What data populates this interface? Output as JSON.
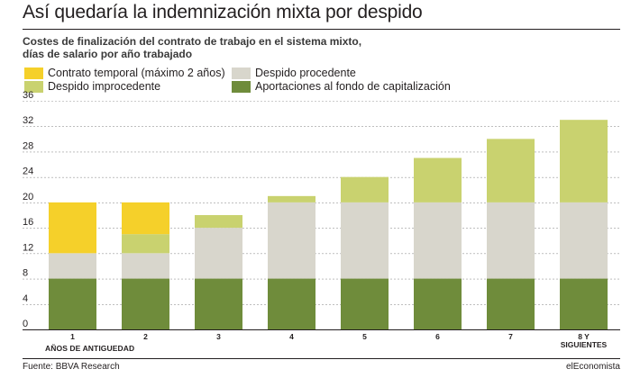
{
  "title": "Así quedaría la indemnización mixta por despido",
  "subtitle": {
    "line1": "Costes de finalización del contrato de trabajo en el sistema mixto,",
    "line2": "días de salario por año trabajado"
  },
  "colors": {
    "temporal": "#f5d02a",
    "improcedente": "#c9d26f",
    "procedente": "#d8d6cc",
    "fondo": "#6f8c3b",
    "grid": "#999999",
    "axis": "#231f20"
  },
  "chart_data": {
    "type": "bar",
    "stacked": true,
    "title": "Así quedaría la indemnización mixta por despido",
    "xlabel": "AÑOS DE ANTIGUEDAD",
    "ylabel": "",
    "ylim": [
      0,
      36
    ],
    "y_ticks": [
      0,
      4,
      8,
      12,
      16,
      20,
      24,
      28,
      32,
      36
    ],
    "categories": [
      "1",
      "2",
      "3",
      "4",
      "5",
      "6",
      "7",
      "8 Y\nSIGUIENTES"
    ],
    "series": [
      {
        "name": "Aportaciones al fondo de capitalización",
        "key": "fondo",
        "values": [
          8,
          8,
          8,
          8,
          8,
          8,
          8,
          8
        ]
      },
      {
        "name": "Despido procedente",
        "key": "procedente",
        "values": [
          4,
          4,
          8,
          12,
          12,
          12,
          12,
          12
        ]
      },
      {
        "name": "Despido improcedente",
        "key": "improcedente",
        "values": [
          0,
          3,
          2,
          1,
          4,
          7,
          10,
          13
        ]
      },
      {
        "name": "Contrato temporal (máximo 2 años)",
        "key": "temporal",
        "values": [
          8,
          5,
          0,
          0,
          0,
          0,
          0,
          0
        ]
      }
    ],
    "legend": [
      {
        "label": "Contrato temporal (máximo 2 años)",
        "key": "temporal"
      },
      {
        "label": "Despido procedente",
        "key": "procedente"
      },
      {
        "label": "Despido improcedente",
        "key": "improcedente"
      },
      {
        "label": "Aportaciones al fondo de capitalización",
        "key": "fondo"
      }
    ]
  },
  "footer": {
    "source": "Fuente: BBVA Research",
    "brand": "elEconomista"
  }
}
